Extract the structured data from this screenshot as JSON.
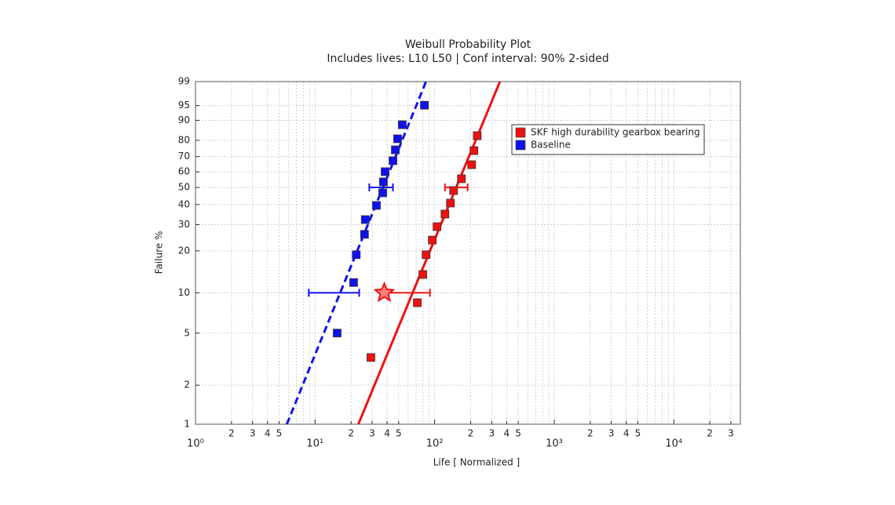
{
  "chart_data": {
    "type": "weibull",
    "title": "Weibull Probability Plot",
    "subtitle": "Includes lives: L10 L50 | Conf interval: 90% 2-sided",
    "xlabel": "Life [ Normalized ]",
    "ylabel": "Failure %",
    "xscale": "log",
    "yscale": "weibull",
    "grid": true,
    "legend": "upper right",
    "xlim": [
      1,
      36000
    ],
    "ylim": [
      1,
      99
    ],
    "xticks": [
      {
        "value": 1,
        "label": "10⁰"
      },
      2,
      3,
      4,
      5,
      {
        "value": 10,
        "label": "10¹"
      },
      {
        "value": 20,
        "label": "2"
      },
      {
        "value": 30,
        "label": "3"
      },
      {
        "value": 40,
        "label": "4"
      },
      {
        "value": 50,
        "label": "5"
      },
      {
        "value": 100,
        "label": "10²"
      },
      {
        "value": 200,
        "label": "2"
      },
      {
        "value": 300,
        "label": "3"
      },
      {
        "value": 400,
        "label": "4"
      },
      {
        "value": 500,
        "label": "5"
      },
      {
        "value": 1000,
        "label": "10³"
      },
      {
        "value": 2000,
        "label": "2"
      },
      {
        "value": 3000,
        "label": "3"
      },
      {
        "value": 4000,
        "label": "4"
      },
      {
        "value": 5000,
        "label": "5"
      },
      {
        "value": 10000,
        "label": "10⁴"
      },
      {
        "value": 20000,
        "label": "2"
      },
      {
        "value": 30000,
        "label": "3"
      }
    ],
    "yticks": [
      1,
      2,
      5,
      10,
      20,
      30,
      40,
      50,
      60,
      70,
      80,
      90,
      95,
      99
    ],
    "series": [
      {
        "name": "SKF high durability gearbox bearing",
        "color": "#ee1111",
        "line_style": "solid",
        "x": [
          29.3,
          71.6,
          79.7,
          84.8,
          95.6,
          104.7,
          122,
          135.5,
          144,
          167.5,
          204,
          213,
          227
        ],
        "values": [
          3.26,
          8.45,
          13.6,
          18.8,
          23.7,
          29.1,
          35.0,
          40.8,
          48.1,
          55.5,
          64.7,
          73.8,
          82.6
        ],
        "fit": {
          "x": [
            23.0,
            351.6
          ],
          "values": [
            1,
            99
          ]
        },
        "intervals": [
          {
            "y": 10,
            "x": [
              37.9,
              91.4
            ]
          },
          {
            "y": 50,
            "x": [
              122,
              188.7
            ]
          }
        ],
        "markers": [
          {
            "x": 37.9,
            "y": 10
          }
        ]
      },
      {
        "name": "Baseline",
        "color": "#1111ee",
        "line_style": "dashed",
        "x": [
          15.3,
          21.0,
          22.1,
          25.9,
          26.3,
          32.6,
          36.8,
          37.3,
          38.5,
          44.8,
          46.9,
          49.0,
          53.6,
          82.1
        ],
        "values": [
          5,
          11.9,
          18.8,
          25.9,
          32.3,
          39.5,
          46.7,
          53.5,
          60.1,
          67.3,
          74.3,
          80.9,
          88.1,
          95.1
        ],
        "fit": {
          "x": [
            5.8,
            84.7
          ],
          "values": [
            1,
            99
          ]
        },
        "intervals": [
          {
            "y": 10,
            "x": [
              8.86,
              23.4
            ]
          },
          {
            "y": 50,
            "x": [
              28.4,
              44.8
            ]
          }
        ]
      }
    ]
  }
}
